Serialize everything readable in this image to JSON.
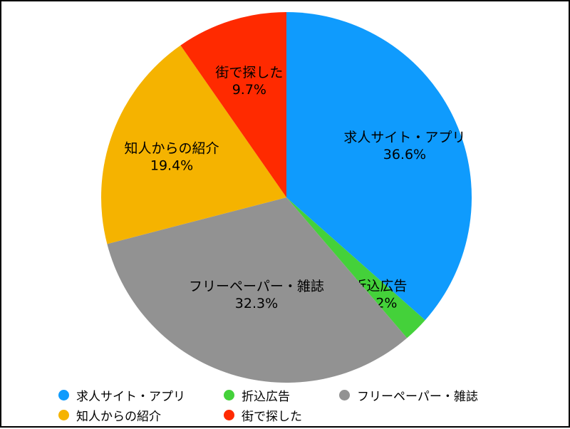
{
  "chart_data": {
    "type": "pie",
    "start_angle_deg": 0,
    "direction": "clockwise",
    "slices": [
      {
        "label": "求人サイト・アプリ",
        "value": 36.6,
        "display": "36.6%",
        "color": "#0f9bfd"
      },
      {
        "label": "折込広告",
        "value": 2.2,
        "display": "2.2%",
        "color": "#44d13a"
      },
      {
        "label": "フリーペーパー・雑誌",
        "value": 32.3,
        "display": "32.3%",
        "color": "#929292"
      },
      {
        "label": "知人からの紹介",
        "value": 19.4,
        "display": "19.4%",
        "color": "#f5b300"
      },
      {
        "label": "街で探した",
        "value": 9.7,
        "display": "9.7%",
        "color": "#ff2a00"
      }
    ],
    "legend_position": "bottom"
  }
}
